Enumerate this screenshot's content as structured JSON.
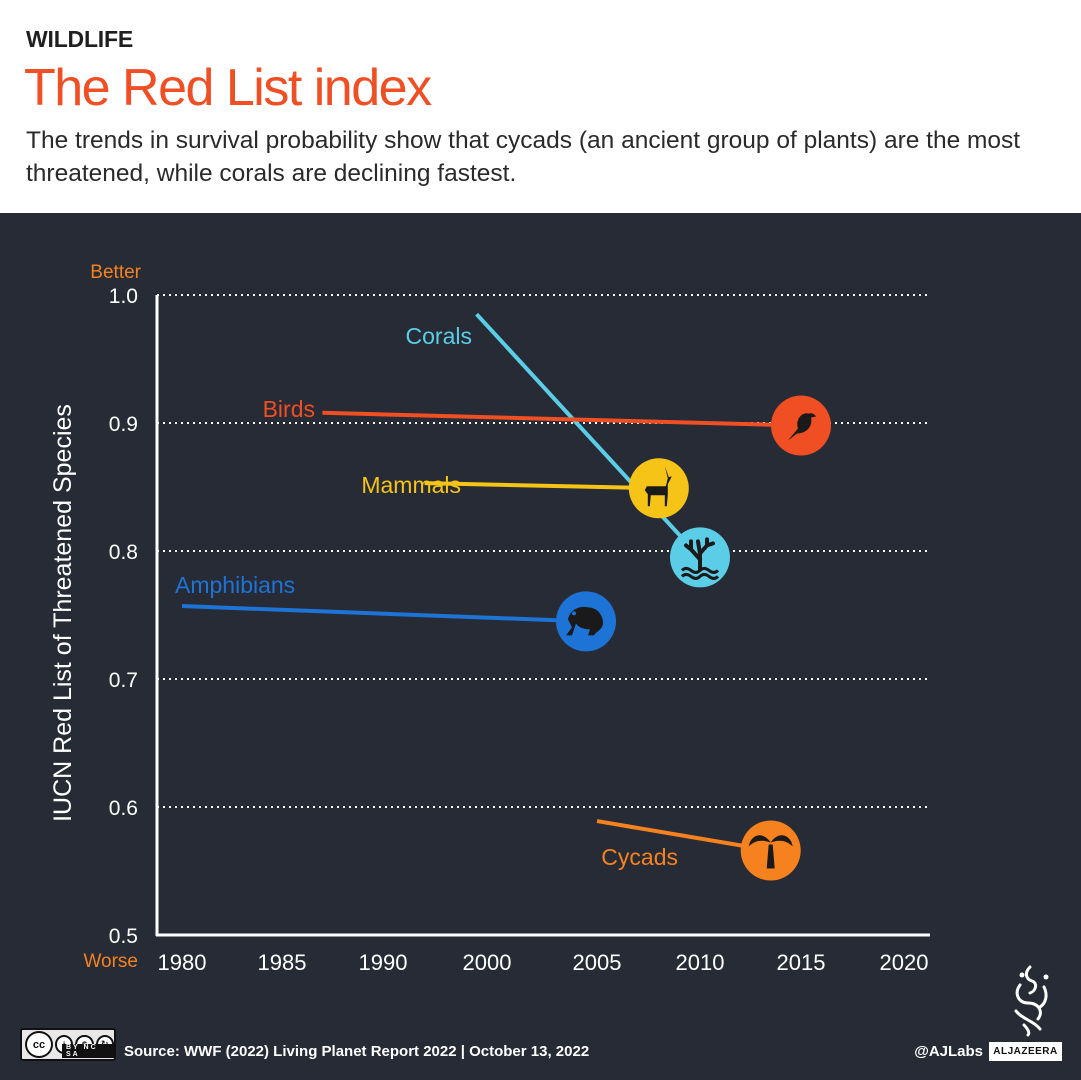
{
  "header": {
    "kicker": "WILDLIFE",
    "title": "The Red List index",
    "subtitle": "The trends in survival probability show that cycads (an ancient group of plants) are the most threatened, while corals are declining fastest."
  },
  "chart_data": {
    "type": "line",
    "title": "The Red List index",
    "ylabel": "IUCN Red List of Threatened Species",
    "xlabel": "",
    "ylim": [
      0.5,
      1.0
    ],
    "xlim": [
      1980,
      2020
    ],
    "yticks": [
      "0.5",
      "0.6",
      "0.7",
      "0.8",
      "0.9",
      "1.0"
    ],
    "xticks": [
      "1980",
      "1985",
      "1990",
      "2000",
      "2005",
      "2010",
      "2015",
      "2020"
    ],
    "y_top_label": "Better",
    "y_bottom_label": "Worse",
    "grid": true,
    "series": [
      {
        "name": "Corals",
        "color": "#5ccde6",
        "icon": "coral-icon",
        "x": [
          1999,
          2010
        ],
        "values": [
          0.985,
          0.795
        ]
      },
      {
        "name": "Birds",
        "color": "#f04e23",
        "icon": "bird-icon",
        "x": [
          1987,
          2015
        ],
        "values": [
          0.908,
          0.898
        ]
      },
      {
        "name": "Mammals",
        "color": "#f6c417",
        "icon": "antelope-icon",
        "x": [
          1994,
          2008
        ],
        "values": [
          0.853,
          0.849
        ]
      },
      {
        "name": "Amphibians",
        "color": "#1e73d6",
        "icon": "frog-icon",
        "x": [
          1980,
          2004.5
        ],
        "values": [
          0.757,
          0.745
        ]
      },
      {
        "name": "Cycads",
        "color": "#f6821f",
        "icon": "palm-icon",
        "x": [
          2005,
          2013.5
        ],
        "values": [
          0.589,
          0.566
        ]
      }
    ]
  },
  "footer": {
    "license": "cc",
    "license_terms": "BY NC SA",
    "source": "Source: WWF (2022) Living Planet Report 2022  |  October 13, 2022",
    "handle": "@AJLabs",
    "brand": "ALJAZEERA"
  }
}
